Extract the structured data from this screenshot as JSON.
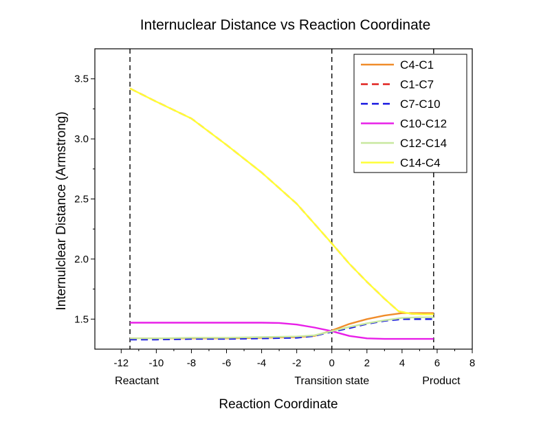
{
  "chart_data": {
    "type": "line",
    "title": "Internuclear Distance vs Reaction Coordinate",
    "xlabel": "Reaction Coordinate",
    "ylabel": "Internulclear Distance (Armstrong)",
    "xlim": [
      -13.5,
      8
    ],
    "ylim": [
      1.25,
      3.75
    ],
    "xticks": [
      -12,
      -10,
      -8,
      -6,
      -4,
      -2,
      0,
      2,
      4,
      6,
      8
    ],
    "yticks": [
      1.5,
      2.0,
      2.5,
      3.0,
      3.5
    ],
    "x_tick_labels": [
      "-12",
      "-10",
      "-8",
      "-6",
      "-4",
      "-2",
      "0",
      "2",
      "4",
      "6",
      "8"
    ],
    "y_tick_labels": [
      "1.5",
      "2.0",
      "2.5",
      "3.0",
      "3.5"
    ],
    "grid": false,
    "legend_position": "top-right",
    "reference_lines": [
      {
        "x": -11.5,
        "label": "Reactant"
      },
      {
        "x": 0,
        "label": "Transition state"
      },
      {
        "x": 5.8,
        "label": "Product"
      }
    ],
    "series": [
      {
        "name": "C4-C1",
        "color": "#f08c2a",
        "dash": "solid",
        "x": [
          -11.5,
          -10,
          -8,
          -6,
          -4,
          -2,
          -1,
          0,
          1,
          2,
          3,
          4,
          5,
          5.8
        ],
        "y": [
          1.34,
          1.34,
          1.34,
          1.34,
          1.345,
          1.35,
          1.36,
          1.405,
          1.46,
          1.5,
          1.53,
          1.55,
          1.55,
          1.55
        ]
      },
      {
        "name": "C1-C7",
        "color": "#e0201e",
        "dash": "dashed",
        "x": [
          -11.5,
          -10,
          -8,
          -6,
          -4,
          -2,
          0,
          1,
          2,
          3,
          3.8,
          4.5,
          5.2,
          5.8
        ],
        "y": [
          3.42,
          3.31,
          3.17,
          2.95,
          2.72,
          2.46,
          2.13,
          1.96,
          1.81,
          1.67,
          1.565,
          1.545,
          1.54,
          1.54
        ]
      },
      {
        "name": "C7-C10",
        "color": "#1414e0",
        "dash": "dashed",
        "x": [
          -11.5,
          -10,
          -8,
          -6,
          -4,
          -2,
          -1,
          0,
          1,
          2,
          3,
          4,
          5,
          5.8
        ],
        "y": [
          1.33,
          1.33,
          1.335,
          1.335,
          1.34,
          1.345,
          1.36,
          1.395,
          1.425,
          1.46,
          1.485,
          1.5,
          1.5,
          1.5
        ]
      },
      {
        "name": "C10-C12",
        "color": "#e81ee8",
        "dash": "solid",
        "x": [
          -11.5,
          -10,
          -8,
          -6,
          -4,
          -3,
          -2,
          -1,
          0,
          1,
          2,
          3,
          4,
          5,
          5.8
        ],
        "y": [
          1.47,
          1.47,
          1.47,
          1.47,
          1.47,
          1.468,
          1.455,
          1.43,
          1.4,
          1.36,
          1.34,
          1.335,
          1.335,
          1.335,
          1.335
        ]
      },
      {
        "name": "C12-C14",
        "color": "#c8e89e",
        "dash": "solid",
        "x": [
          -11.5,
          -10,
          -8,
          -6,
          -4,
          -2,
          -1,
          0,
          1,
          2,
          3,
          4,
          5,
          5.8
        ],
        "y": [
          1.34,
          1.34,
          1.345,
          1.345,
          1.35,
          1.355,
          1.365,
          1.4,
          1.435,
          1.465,
          1.49,
          1.51,
          1.515,
          1.515
        ]
      },
      {
        "name": "C14-C4",
        "color": "#ffff36",
        "dash": "solid",
        "x": [
          -11.5,
          -10,
          -8,
          -6,
          -4,
          -2,
          0,
          1,
          2,
          3,
          3.8,
          4.5,
          5.2,
          5.8
        ],
        "y": [
          3.42,
          3.31,
          3.17,
          2.95,
          2.72,
          2.46,
          2.13,
          1.96,
          1.81,
          1.67,
          1.565,
          1.545,
          1.54,
          1.54
        ]
      }
    ]
  }
}
